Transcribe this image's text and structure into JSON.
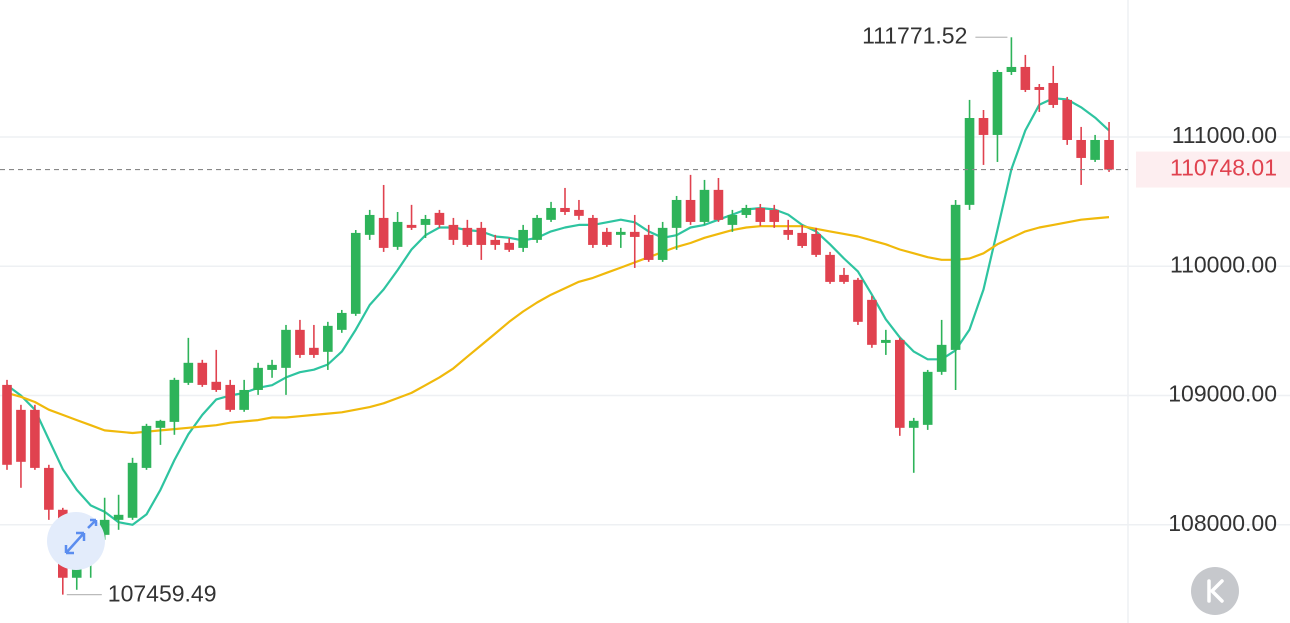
{
  "chart_data": {
    "type": "candlestick",
    "up_color": "#2eb35a",
    "down_color": "#e0424f",
    "ylim": [
      107240,
      112060
    ],
    "yticks": [
      {
        "value": 108000,
        "label": "108000.00"
      },
      {
        "value": 109000,
        "label": "109000.00"
      },
      {
        "value": 110000,
        "label": "110000.00"
      },
      {
        "value": 111000,
        "label": "111000.00"
      }
    ],
    "grid": true,
    "open": [
      109082,
      108889,
      108889,
      108440,
      108116,
      107590,
      107806,
      107922,
      108038,
      108054,
      108440,
      108750,
      108796,
      109098,
      109253,
      109106,
      109082,
      108889,
      109043,
      109198,
      109214,
      109508,
      109369,
      109338,
      109508,
      109632,
      110243,
      110374,
      110150,
      110320,
      110320,
      110413,
      110320,
      110297,
      110297,
      110204,
      110181,
      110142,
      110204,
      110359,
      110451,
      110436,
      110374,
      110266,
      110243,
      110266,
      110243,
      110049,
      110297,
      110513,
      110343,
      110591,
      110320,
      110397,
      110451,
      110436,
      110281,
      110258,
      110250,
      110088,
      109933,
      109895,
      109740,
      109407,
      109430,
      108750,
      108773,
      109183,
      109353,
      110475,
      111147,
      111016,
      111503,
      111542,
      111387,
      111418,
      111287,
      110977,
      110823,
      110977
    ],
    "high": [
      109121,
      108928,
      108928,
      108464,
      108131,
      107822,
      107999,
      108209,
      108232,
      108518,
      108781,
      108812,
      109137,
      109446,
      109276,
      109353,
      109121,
      109121,
      109253,
      109276,
      109546,
      109585,
      109546,
      109570,
      109662,
      110281,
      110436,
      110629,
      110420,
      110475,
      110397,
      110436,
      110374,
      110359,
      110343,
      110243,
      110219,
      110320,
      110397,
      110498,
      110606,
      110513,
      110397,
      110297,
      110297,
      110397,
      110320,
      110343,
      110544,
      110707,
      110668,
      110683,
      110436,
      110475,
      110482,
      110475,
      110359,
      110320,
      110297,
      110111,
      109987,
      109910,
      109771,
      109508,
      109446,
      108827,
      109198,
      109585,
      110513,
      111287,
      111209,
      111519,
      111771.52,
      111635,
      111410,
      111550,
      111310,
      111078,
      111016,
      111116
    ],
    "low": [
      108425,
      108286,
      108425,
      108038,
      107459.49,
      107497,
      107590,
      107884,
      107961,
      108038,
      108425,
      108618,
      108696,
      109082,
      109067,
      109028,
      108874,
      108874,
      109005,
      109137,
      109005,
      109291,
      109291,
      109198,
      109485,
      109616,
      110204,
      110111,
      110127,
      110281,
      110219,
      110297,
      110165,
      110150,
      110049,
      110127,
      110111,
      110111,
      110181,
      110343,
      110397,
      110359,
      110142,
      110150,
      110142,
      109987,
      110034,
      110034,
      110127,
      110320,
      110320,
      110343,
      110266,
      110374,
      110312,
      110297,
      110204,
      110142,
      110072,
      109864,
      109864,
      109546,
      109369,
      109314,
      108688,
      108402,
      108734,
      109160,
      109043,
      110436,
      110784,
      110807,
      111480,
      111348,
      111194,
      111225,
      110939,
      110629,
      110807,
      110730
    ],
    "close": [
      108464,
      108487,
      108440,
      108116,
      107590,
      107806,
      107922,
      108038,
      108077,
      108479,
      108765,
      108804,
      109121,
      109253,
      109082,
      109043,
      108889,
      109043,
      109214,
      109237,
      109508,
      109314,
      109314,
      109539,
      109639,
      110258,
      110397,
      110142,
      110343,
      110297,
      110366,
      110320,
      110204,
      110165,
      110165,
      110165,
      110127,
      110281,
      110374,
      110451,
      110420,
      110390,
      110165,
      110165,
      110266,
      110227,
      110049,
      110297,
      110513,
      110343,
      110591,
      110359,
      110397,
      110451,
      110343,
      110343,
      110243,
      110157,
      110088,
      109879,
      109879,
      109570,
      109392,
      109430,
      108750,
      108804,
      109183,
      109392,
      110475,
      111147,
      111016,
      111503,
      111542,
      111364,
      111364,
      111248,
      110977,
      110838,
      110977,
      110748.01
    ],
    "lines": [
      {
        "color": "#2ec4a0",
        "values": [
          109080,
          109000,
          108890,
          108660,
          108430,
          108270,
          108150,
          108100,
          108020,
          108000,
          108080,
          108270,
          108500,
          108700,
          108850,
          108970,
          109000,
          109020,
          109060,
          109080,
          109140,
          109180,
          109200,
          109240,
          109340,
          109510,
          109700,
          109820,
          109970,
          110130,
          110240,
          110300,
          110300,
          110280,
          110270,
          110230,
          110220,
          110200,
          110220,
          110270,
          110300,
          110320,
          110320,
          110340,
          110360,
          110340,
          110270,
          110220,
          110240,
          110300,
          110320,
          110360,
          110400,
          110440,
          110450,
          110440,
          110400,
          110320,
          110270,
          110170,
          110060,
          109960,
          109780,
          109590,
          109450,
          109340,
          109280,
          109280,
          109350,
          109510,
          109820,
          110280,
          110750,
          111050,
          111250,
          111300,
          111290,
          111230,
          111150,
          111050
        ]
      },
      {
        "color": "#f0b90b",
        "values": [
          109020,
          108990,
          108950,
          108890,
          108850,
          108810,
          108770,
          108730,
          108720,
          108710,
          108720,
          108730,
          108740,
          108750,
          108760,
          108770,
          108790,
          108800,
          108810,
          108830,
          108830,
          108840,
          108850,
          108860,
          108870,
          108890,
          108910,
          108940,
          108980,
          109020,
          109080,
          109140,
          109210,
          109300,
          109390,
          109480,
          109570,
          109650,
          109720,
          109780,
          109830,
          109880,
          109910,
          109950,
          109990,
          110030,
          110070,
          110110,
          110150,
          110180,
          110220,
          110250,
          110280,
          110300,
          110310,
          110310,
          110310,
          110310,
          110290,
          110270,
          110250,
          110230,
          110200,
          110170,
          110130,
          110100,
          110070,
          110050,
          110050,
          110060,
          110100,
          110170,
          110220,
          110270,
          110300,
          110320,
          110340,
          110360,
          110370,
          110380
        ]
      }
    ]
  }
}
